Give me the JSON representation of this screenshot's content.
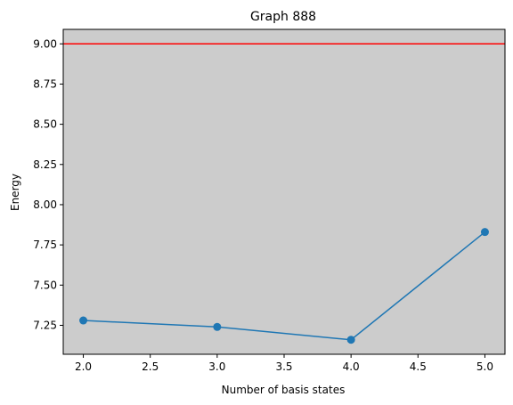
{
  "chart_data": {
    "type": "line",
    "title": "Graph 888",
    "xlabel": "Number of basis states",
    "ylabel": "Energy",
    "xlim": [
      1.85,
      5.15
    ],
    "ylim": [
      7.07,
      9.09
    ],
    "xticks": [
      2.0,
      2.5,
      3.0,
      3.5,
      4.0,
      4.5,
      5.0
    ],
    "xtick_labels": [
      "2.0",
      "2.5",
      "3.0",
      "3.5",
      "4.0",
      "4.5",
      "5.0"
    ],
    "yticks": [
      7.25,
      7.5,
      7.75,
      8.0,
      8.25,
      8.5,
      8.75,
      9.0
    ],
    "ytick_labels": [
      "7.25",
      "7.50",
      "7.75",
      "8.00",
      "8.25",
      "8.50",
      "8.75",
      "9.00"
    ],
    "series": [
      {
        "x": [
          2,
          3,
          4,
          5
        ],
        "y": [
          7.28,
          7.24,
          7.16,
          7.83
        ],
        "color": "#1f77b4",
        "marker": "circle"
      }
    ],
    "hlines": [
      {
        "y": 9.0,
        "color": "#ff0000"
      }
    ],
    "plot_background": "#cccccc",
    "grid": false,
    "legend": "none"
  }
}
